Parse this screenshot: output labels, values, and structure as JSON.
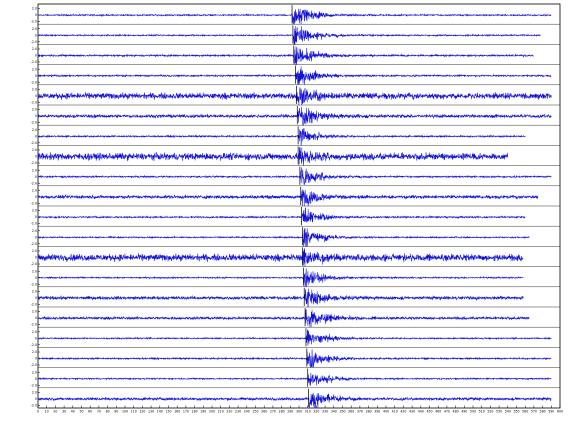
{
  "chart_data": {
    "type": "line",
    "xlabel": "",
    "ylabel": "",
    "grid": false,
    "x_ticks": [
      "0",
      "10",
      "20",
      "30",
      "40",
      "50",
      "60",
      "70",
      "80",
      "90",
      "100",
      "110",
      "120",
      "130",
      "140",
      "150",
      "160",
      "170",
      "180",
      "190",
      "200",
      "210",
      "220",
      "230",
      "240",
      "250",
      "260",
      "270",
      "280",
      "290",
      "300",
      "310",
      "320",
      "330",
      "340",
      "350",
      "360",
      "370",
      "380",
      "390",
      "400",
      "410",
      "420",
      "430",
      "440",
      "450",
      "460",
      "470",
      "480",
      "490",
      "500",
      "510",
      "520",
      "530",
      "540",
      "550",
      "560",
      "570",
      "580",
      "590",
      "600"
    ],
    "xlim": [
      0,
      600
    ],
    "y_tick_values": [
      "2.0",
      "0",
      "-2.0"
    ],
    "colors": {
      "trace": "#1010d8",
      "frame": "#000000"
    },
    "series": [
      {
        "name": "",
        "pick": 292,
        "pick_label": "",
        "end": 590,
        "noise": 0.05,
        "amp": 0.9
      },
      {
        "name": "",
        "pick": 293,
        "pick_label": "",
        "end": 578,
        "noise": 0.05,
        "amp": 0.9
      },
      {
        "name": "",
        "pick": 294,
        "pick_label": "",
        "end": 570,
        "noise": 0.07,
        "amp": 0.9
      },
      {
        "name": "",
        "pick": 296,
        "pick_label": "",
        "end": 590,
        "noise": 0.06,
        "amp": 0.85
      },
      {
        "name": "",
        "pick": 297,
        "pick_label": "",
        "end": 590,
        "noise": 0.22,
        "amp": 0.8
      },
      {
        "name": "",
        "pick": 298,
        "pick_label": "",
        "end": 590,
        "noise": 0.12,
        "amp": 0.9
      },
      {
        "name": "",
        "pick": 299,
        "pick_label": "",
        "end": 560,
        "noise": 0.06,
        "amp": 0.7
      },
      {
        "name": "",
        "pick": 299,
        "pick_label": "",
        "end": 540,
        "noise": 0.25,
        "amp": 0.85
      },
      {
        "name": "",
        "pick": 301,
        "pick_label": "",
        "end": 590,
        "noise": 0.06,
        "amp": 0.8
      },
      {
        "name": "",
        "pick": 302,
        "pick_label": "",
        "end": 575,
        "noise": 0.12,
        "amp": 0.8
      },
      {
        "name": "",
        "pick": 303,
        "pick_label": "",
        "end": 560,
        "noise": 0.06,
        "amp": 0.7
      },
      {
        "name": "",
        "pick": 304,
        "pick_label": "",
        "end": 565,
        "noise": 0.05,
        "amp": 0.8
      },
      {
        "name": "",
        "pick": 304,
        "pick_label": "",
        "end": 558,
        "noise": 0.25,
        "amp": 0.85
      },
      {
        "name": "",
        "pick": 305,
        "pick_label": "",
        "end": 558,
        "noise": 0.05,
        "amp": 0.75
      },
      {
        "name": "",
        "pick": 306,
        "pick_label": "",
        "end": 558,
        "noise": 0.12,
        "amp": 0.85
      },
      {
        "name": "",
        "pick": 307,
        "pick_label": "",
        "end": 565,
        "noise": 0.1,
        "amp": 0.9
      },
      {
        "name": "",
        "pick": 308,
        "pick_label": "",
        "end": 590,
        "noise": 0.05,
        "amp": 0.7
      },
      {
        "name": "",
        "pick": 309,
        "pick_label": "",
        "end": 590,
        "noise": 0.06,
        "amp": 0.8
      },
      {
        "name": "",
        "pick": 310,
        "pick_label": "",
        "end": 590,
        "noise": 0.05,
        "amp": 0.7
      },
      {
        "name": "",
        "pick": 311,
        "pick_label": "",
        "end": 590,
        "noise": 0.1,
        "amp": 0.85
      }
    ]
  }
}
